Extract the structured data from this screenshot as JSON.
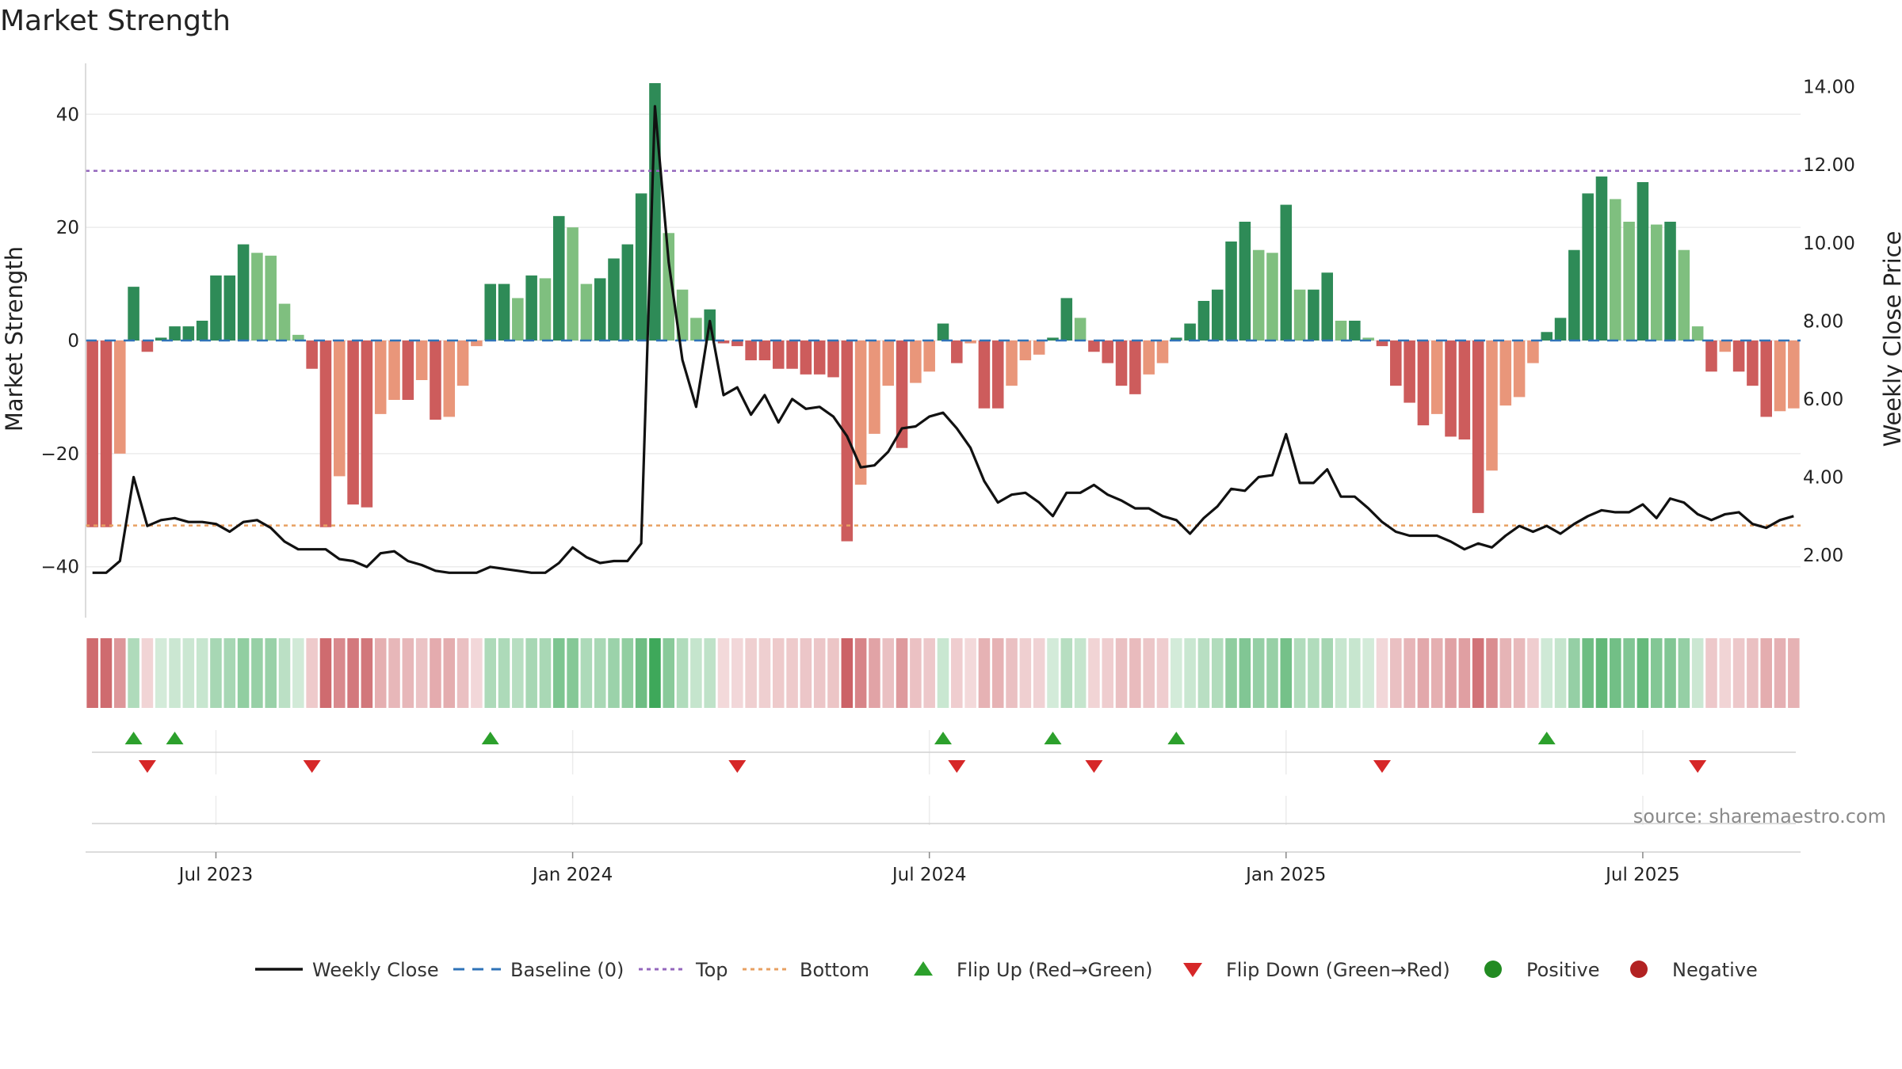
{
  "chart_data": {
    "type": "bar",
    "title": "Market Strength",
    "ylabel": "Market Strength",
    "y2label": "Weekly Close Price",
    "ylim": [
      -49,
      49
    ],
    "y2lim": [
      0.4,
      14.6
    ],
    "yticks": [
      -40,
      -20,
      0,
      20,
      40
    ],
    "yticklabels": [
      "−40",
      "−20",
      "0",
      "20",
      "40"
    ],
    "y2ticks": [
      2,
      4,
      6,
      8,
      10,
      12,
      14
    ],
    "y2ticklabels": [
      "2.00",
      "4.00",
      "6.00",
      "8.00",
      "10.00",
      "12.00",
      "14.00"
    ],
    "top_level": 30,
    "bottom_level": -32.7,
    "xticks": [
      {
        "week": 9,
        "label": "Jul 2023"
      },
      {
        "week": 35,
        "label": "Jan 2024"
      },
      {
        "week": 61,
        "label": "Jul 2024"
      },
      {
        "week": 87,
        "label": "Jan 2025"
      },
      {
        "week": 113,
        "label": "Jul 2025"
      }
    ],
    "strength": [
      -33,
      -33,
      -20,
      9.5,
      -2,
      0.5,
      2.5,
      2.5,
      3.5,
      11.5,
      11.5,
      17,
      15.5,
      15,
      6.5,
      1,
      -5,
      -33,
      -24,
      -29,
      -29.5,
      -13,
      -10.5,
      -10.5,
      -7,
      -14,
      -13.5,
      -8,
      -1,
      10,
      10,
      7.5,
      11.5,
      11,
      22,
      20,
      10,
      11,
      14.5,
      17,
      26,
      45.5,
      19,
      9,
      4,
      5.5,
      -0.5,
      -1,
      -3.5,
      -3.5,
      -5,
      -5,
      -6,
      -6,
      -6.5,
      -35.5,
      -25.5,
      -16.5,
      -8,
      -19,
      -7.5,
      -5.5,
      3,
      -4,
      -0.5,
      -12,
      -12,
      -8,
      -3.5,
      -2.5,
      0.5,
      7.5,
      4,
      -2,
      -4,
      -8,
      -9.5,
      -6,
      -4,
      0.5,
      3,
      7,
      9,
      17.5,
      21,
      16,
      15.5,
      24,
      9,
      9,
      12,
      3.5,
      3.5,
      0.5,
      -1,
      -8,
      -11,
      -15,
      -13,
      -17,
      -17.5,
      -30.5,
      -23,
      -11.5,
      -10,
      -4,
      1.5,
      4,
      16,
      26,
      29,
      25,
      21,
      28,
      20.5,
      21,
      16,
      2.5,
      -5.5,
      -2,
      -5.5,
      -8,
      -13.5,
      -12.5,
      -12
    ],
    "close": [
      1.55,
      1.55,
      1.85,
      4,
      2.75,
      2.9,
      2.95,
      2.85,
      2.85,
      2.8,
      2.6,
      2.85,
      2.9,
      2.7,
      2.35,
      2.15,
      2.15,
      2.15,
      1.9,
      1.85,
      1.7,
      2.05,
      2.1,
      1.85,
      1.75,
      1.6,
      1.55,
      1.55,
      1.55,
      1.7,
      1.65,
      1.6,
      1.55,
      1.55,
      1.8,
      2.2,
      1.95,
      1.8,
      1.85,
      1.85,
      2.3,
      13.5,
      9.5,
      7,
      5.8,
      8,
      6.1,
      6.3,
      5.6,
      6.1,
      5.4,
      6,
      5.75,
      5.8,
      5.55,
      5.05,
      4.25,
      4.3,
      4.65,
      5.25,
      5.3,
      5.55,
      5.65,
      5.25,
      4.75,
      3.9,
      3.35,
      3.55,
      3.6,
      3.35,
      3,
      3.6,
      3.6,
      3.8,
      3.55,
      3.4,
      3.2,
      3.2,
      3,
      2.9,
      2.55,
      2.95,
      3.25,
      3.7,
      3.65,
      4,
      4.05,
      5.1,
      3.85,
      3.85,
      4.2,
      3.5,
      3.5,
      3.2,
      2.85,
      2.6,
      2.5,
      2.5,
      2.5,
      2.35,
      2.15,
      2.3,
      2.2,
      2.5,
      2.75,
      2.6,
      2.75,
      2.55,
      2.8,
      3,
      3.15,
      3.1,
      3.1,
      3.3,
      2.95,
      3.45,
      3.35,
      3.05,
      2.9,
      3.05,
      3.1,
      2.8,
      2.7,
      2.9,
      3
    ],
    "flip_up_weeks": [
      3,
      6,
      29,
      62,
      70,
      79,
      106
    ],
    "flip_down_weeks": [
      4,
      16,
      47,
      63,
      73,
      94,
      117
    ],
    "series": [
      {
        "name": "Weekly Close",
        "color": "#111111"
      },
      {
        "name": "Baseline (0)",
        "color": "#2f73b8"
      },
      {
        "name": "Top",
        "color": "#9467bd"
      },
      {
        "name": "Bottom",
        "color": "#e8a062"
      },
      {
        "name": "Flip Up (Red→Green)",
        "color": "#2ca02c"
      },
      {
        "name": "Flip Down (Green→Red)",
        "color": "#d62728"
      },
      {
        "name": "Positive",
        "color": "#228b22"
      },
      {
        "name": "Negative",
        "color": "#b22222"
      }
    ]
  },
  "colors": {
    "pos_dark": "#2e8b57",
    "pos_light": "#7fbf7f",
    "neg_dark": "#cd5c5c",
    "neg_light": "#e9967a"
  },
  "source": "source: sharemaestro.com"
}
